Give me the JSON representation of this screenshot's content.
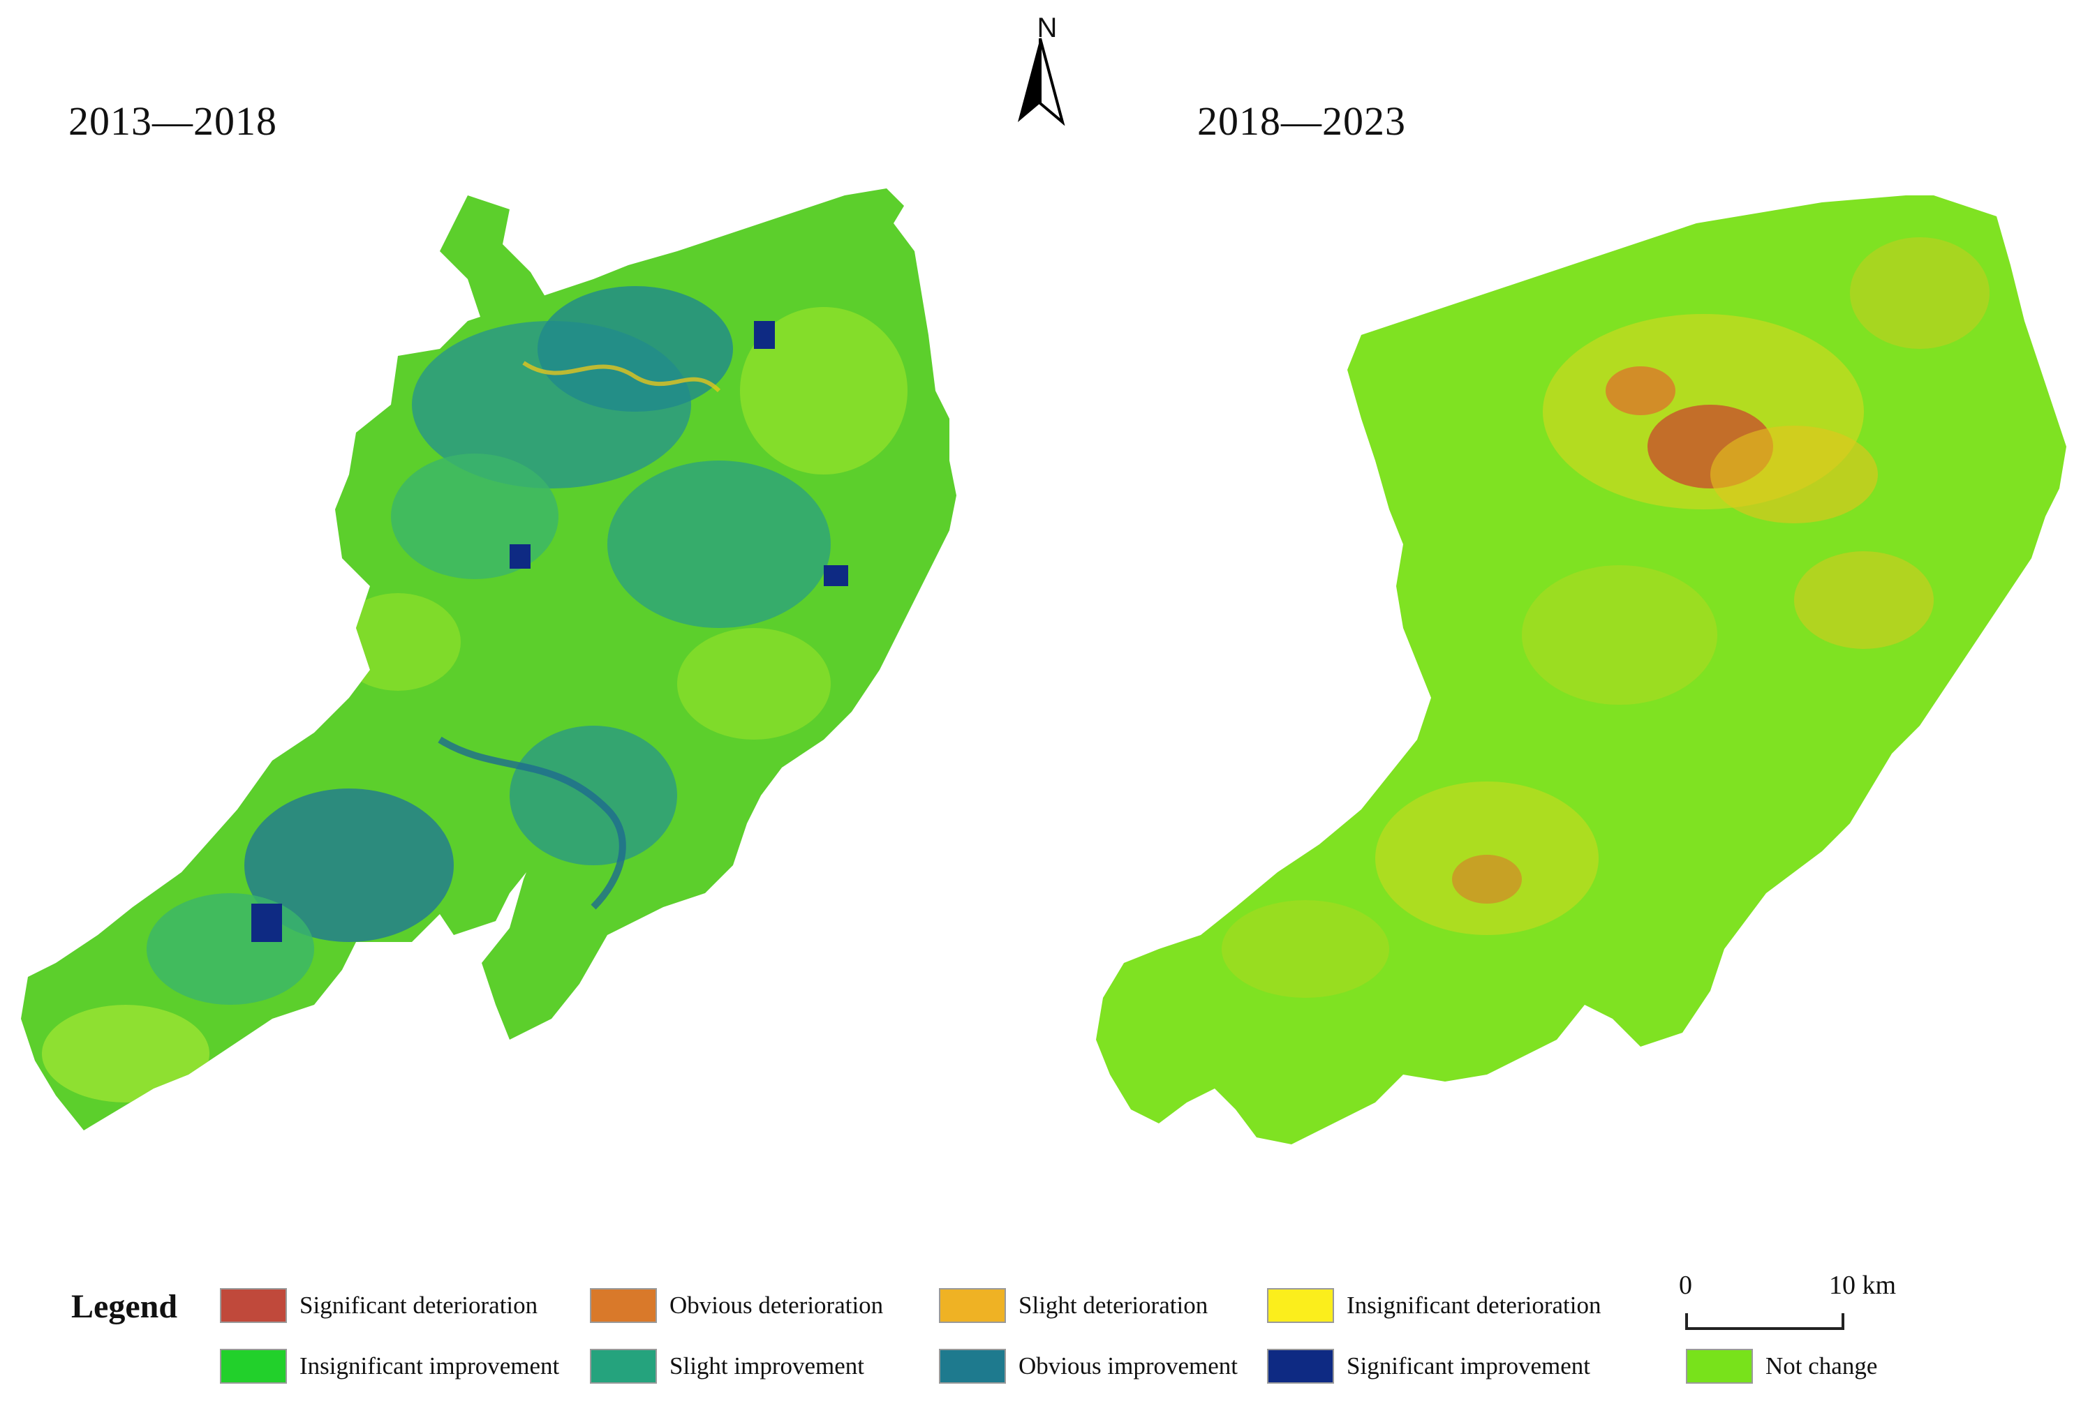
{
  "titles": {
    "left": "2013—2018",
    "right": "2018—2023"
  },
  "north_arrow": {
    "label": "N"
  },
  "legend": {
    "title": "Legend",
    "items": [
      {
        "label": "Significant deterioration",
        "color": "#c0493b"
      },
      {
        "label": "Obvious deterioration",
        "color": "#d9792a"
      },
      {
        "label": "Slight deterioration",
        "color": "#efb224"
      },
      {
        "label": "Insignificant deterioration",
        "color": "#fbee1c"
      },
      {
        "label": "Insignificant improvement",
        "color": "#22d02b"
      },
      {
        "label": "Slight improvement",
        "color": "#25a37d"
      },
      {
        "label": "Obvious improvement",
        "color": "#1e7a8e"
      },
      {
        "label": "Significant improvement",
        "color": "#0e2a83"
      },
      {
        "label": "Not change",
        "color": "#78e21b"
      }
    ]
  },
  "scale_bar": {
    "start": "0",
    "end": "10 km"
  }
}
